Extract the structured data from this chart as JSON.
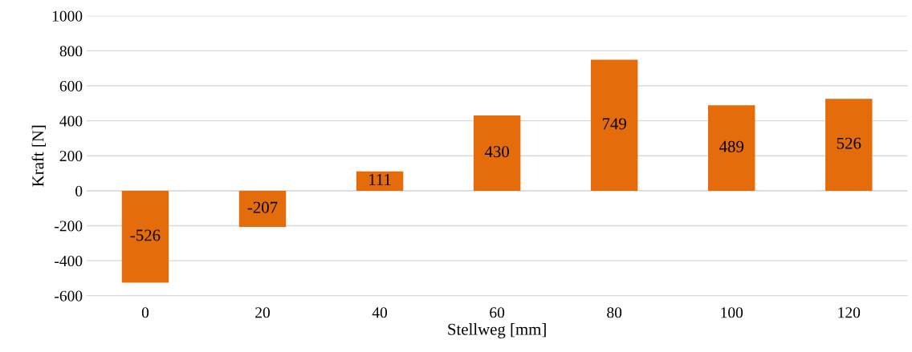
{
  "chart_data": {
    "type": "bar",
    "xlabel": "Stellweg [mm]",
    "ylabel": "Kraft [N]",
    "categories": [
      "0",
      "20",
      "40",
      "60",
      "80",
      "100",
      "120"
    ],
    "values": [
      -526,
      -207,
      111,
      430,
      749,
      489,
      526
    ],
    "color": "#e46c0a",
    "ylim": [
      -600,
      1000
    ],
    "yticks": [
      -600,
      -400,
      -200,
      0,
      200,
      400,
      600,
      800,
      1000
    ],
    "grid": "y",
    "data_labels": true
  }
}
